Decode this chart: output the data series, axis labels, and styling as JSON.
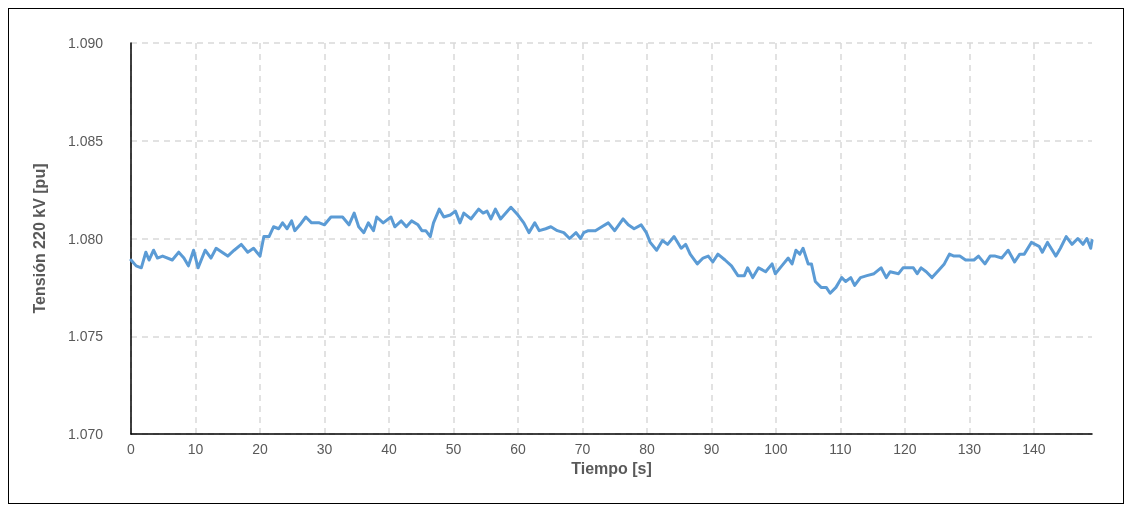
{
  "chart_data": {
    "type": "line",
    "xlabel": "Tiempo [s]",
    "ylabel": "Tensión 220 kV [pu]",
    "xlim": [
      0,
      149
    ],
    "xticks": [
      0,
      10,
      20,
      30,
      40,
      50,
      60,
      70,
      80,
      90,
      100,
      110,
      120,
      130,
      140
    ],
    "ylim": [
      1.07,
      1.09
    ],
    "yticks": [
      {
        "value": 1.07,
        "label": "1.070"
      },
      {
        "value": 1.075,
        "label": "1.075"
      },
      {
        "value": 1.08,
        "label": "1.080"
      },
      {
        "value": 1.085,
        "label": "1.085"
      },
      {
        "value": 1.09,
        "label": "1.090"
      }
    ],
    "grid": true,
    "marker": "none",
    "line_style": "solid",
    "series": [
      {
        "color": "#5b9bd5",
        "x": [
          0,
          0.8,
          1.6,
          2.3,
          2.8,
          3.5,
          4.1,
          4.9,
          6.4,
          7.4,
          8.2,
          8.9,
          9.7,
          10.4,
          11.5,
          12.4,
          13.2,
          15.0,
          16.0,
          17.1,
          18.1,
          19.0,
          20.0,
          20.6,
          21.4,
          22.1,
          22.9,
          23.5,
          24.2,
          24.9,
          25.4,
          26.2,
          27.1,
          28.0,
          29.2,
          30.0,
          31.0,
          32.8,
          33.8,
          34.6,
          35.3,
          36.1,
          36.8,
          37.6,
          38.1,
          39.1,
          40.3,
          40.9,
          41.9,
          42.7,
          43.5,
          44.5,
          45.1,
          45.7,
          46.4,
          46.9,
          47.8,
          48.5,
          49.5,
          50.3,
          51.0,
          51.6,
          52.7,
          53.9,
          54.6,
          55.2,
          55.8,
          56.5,
          57.3,
          58.9,
          60.0,
          60.9,
          61.7,
          62.6,
          63.3,
          64.3,
          65.1,
          66.1,
          67.1,
          68.0,
          69.0,
          69.7,
          70.2,
          70.9,
          72.0,
          73.0,
          74.0,
          75.0,
          76.3,
          77.1,
          78.0,
          79.1,
          79.9,
          80.5,
          81.5,
          82.4,
          83.2,
          84.2,
          85.3,
          86.0,
          86.7,
          87.8,
          88.7,
          89.5,
          90.2,
          91.0,
          92.1,
          93.1,
          94.1,
          95.1,
          95.6,
          96.4,
          97.3,
          98.4,
          99.4,
          99.9,
          100.9,
          101.9,
          102.5,
          103.1,
          103.7,
          104.2,
          105.0,
          105.5,
          106.1,
          107.0,
          107.8,
          108.4,
          109.3,
          110.2,
          110.8,
          111.6,
          112.2,
          113.1,
          114.1,
          115.2,
          116.3,
          117.1,
          117.7,
          119.0,
          119.7,
          121.3,
          121.9,
          122.5,
          123.3,
          124.2,
          125.3,
          126.1,
          126.9,
          127.6,
          128.5,
          129.4,
          130.7,
          131.4,
          132.4,
          133.2,
          134.0,
          135.0,
          136.0,
          137.0,
          137.8,
          138.5,
          139.6,
          140.8,
          141.3,
          142.1,
          143.4,
          144.1,
          145.0,
          145.9,
          146.8,
          147.6,
          148.2,
          148.8,
          149.0
        ],
        "values": [
          1.0789,
          1.0786,
          1.0785,
          1.0793,
          1.0789,
          1.0794,
          1.079,
          1.0791,
          1.0789,
          1.0793,
          1.079,
          1.0786,
          1.0794,
          1.0785,
          1.0794,
          1.079,
          1.0795,
          1.0791,
          1.0794,
          1.0797,
          1.0793,
          1.0795,
          1.0791,
          1.0801,
          1.0801,
          1.0806,
          1.0805,
          1.0808,
          1.0805,
          1.0809,
          1.0804,
          1.0807,
          1.0811,
          1.0808,
          1.0808,
          1.0807,
          1.0811,
          1.0811,
          1.0807,
          1.0813,
          1.0806,
          1.0803,
          1.0808,
          1.0804,
          1.0811,
          1.0808,
          1.0811,
          1.0806,
          1.0809,
          1.0806,
          1.0809,
          1.0807,
          1.0804,
          1.0804,
          1.0801,
          1.0808,
          1.0815,
          1.0811,
          1.0812,
          1.0814,
          1.0808,
          1.0813,
          1.081,
          1.0815,
          1.0813,
          1.0814,
          1.081,
          1.0815,
          1.081,
          1.0816,
          1.0812,
          1.0808,
          1.0803,
          1.0808,
          1.0804,
          1.0805,
          1.0806,
          1.0804,
          1.0803,
          1.08,
          1.0803,
          1.08,
          1.0803,
          1.0804,
          1.0804,
          1.0806,
          1.0808,
          1.0804,
          1.081,
          1.0807,
          1.0805,
          1.0807,
          1.0803,
          1.0798,
          1.0794,
          1.0799,
          1.0797,
          1.0801,
          1.0795,
          1.0797,
          1.0792,
          1.0787,
          1.079,
          1.0791,
          1.0788,
          1.0792,
          1.0789,
          1.0786,
          1.0781,
          1.0781,
          1.0785,
          1.078,
          1.0785,
          1.0783,
          1.0787,
          1.0782,
          1.0786,
          1.079,
          1.0787,
          1.0794,
          1.0792,
          1.0795,
          1.0787,
          1.0787,
          1.0778,
          1.0775,
          1.0775,
          1.0772,
          1.0775,
          1.078,
          1.0778,
          1.078,
          1.0776,
          1.078,
          1.0781,
          1.0782,
          1.0785,
          1.078,
          1.0783,
          1.0782,
          1.0785,
          1.0785,
          1.0782,
          1.0785,
          1.0783,
          1.078,
          1.0784,
          1.0787,
          1.0792,
          1.0791,
          1.0791,
          1.0789,
          1.0789,
          1.0791,
          1.0787,
          1.0791,
          1.0791,
          1.079,
          1.0794,
          1.0788,
          1.0792,
          1.0792,
          1.0798,
          1.0796,
          1.0793,
          1.0798,
          1.0791,
          1.0795,
          1.0801,
          1.0797,
          1.08,
          1.0797,
          1.08,
          1.0795,
          1.0799
        ]
      }
    ]
  }
}
